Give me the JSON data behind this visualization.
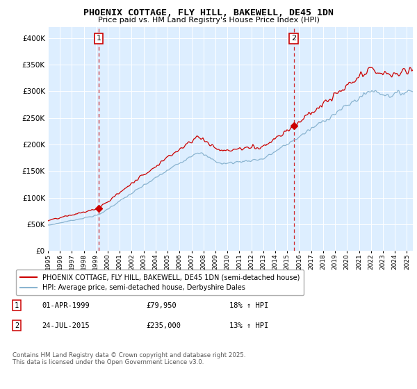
{
  "title": "PHOENIX COTTAGE, FLY HILL, BAKEWELL, DE45 1DN",
  "subtitle": "Price paid vs. HM Land Registry's House Price Index (HPI)",
  "legend_line1": "PHOENIX COTTAGE, FLY HILL, BAKEWELL, DE45 1DN (semi-detached house)",
  "legend_line2": "HPI: Average price, semi-detached house, Derbyshire Dales",
  "annotation1_label": "1",
  "annotation1_date": "01-APR-1999",
  "annotation1_price": "£79,950",
  "annotation1_hpi": "18% ↑ HPI",
  "annotation2_label": "2",
  "annotation2_date": "24-JUL-2015",
  "annotation2_price": "£235,000",
  "annotation2_hpi": "13% ↑ HPI",
  "footnote": "Contains HM Land Registry data © Crown copyright and database right 2025.\nThis data is licensed under the Open Government Licence v3.0.",
  "red_color": "#cc0000",
  "blue_color": "#8ab4d0",
  "plot_bg": "#ddeeff",
  "ylim": [
    0,
    420000
  ],
  "yticks": [
    0,
    50000,
    100000,
    150000,
    200000,
    250000,
    300000,
    350000,
    400000
  ],
  "sale1_year": 1999.25,
  "sale1_price": 79950,
  "sale2_year": 2015.55,
  "sale2_price": 235000
}
